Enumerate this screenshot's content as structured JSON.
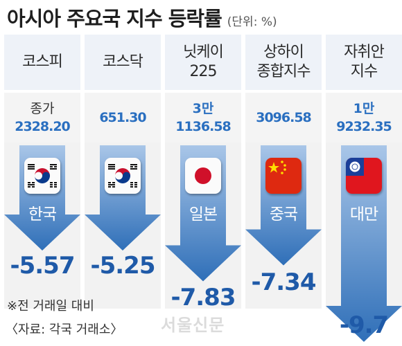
{
  "header": {
    "title": "아시아 주요국 지수 등락률",
    "unit": "(단위: %)"
  },
  "chart_data": {
    "type": "bar",
    "title": "아시아 주요국 지수 등락률",
    "unit": "(단위: %)",
    "categories": [
      "코스피",
      "코스닥",
      "닛케이 225",
      "상하이 종합지수",
      "자취안 지수"
    ],
    "values": [
      -5.57,
      -5.25,
      -7.83,
      -7.34,
      -9.7
    ],
    "ylim": [
      -9.7,
      0
    ],
    "columns": [
      {
        "header_lines": [
          "코스피"
        ],
        "close_label": "종가",
        "close_value": "2328.20",
        "country": "한국",
        "flag_icon": "south-korea-flag-icon",
        "change_label": "-5.57",
        "change": -5.57
      },
      {
        "header_lines": [
          "코스닥"
        ],
        "close_label": "",
        "close_value": "651.30",
        "country": "",
        "flag_icon": "south-korea-flag-icon",
        "change_label": "-5.25",
        "change": -5.25
      },
      {
        "header_lines": [
          "닛케이",
          "225"
        ],
        "close_label": "3만",
        "close_value": "1136.58",
        "country": "일본",
        "flag_icon": "japan-flag-icon",
        "change_label": "-7.83",
        "change": -7.83
      },
      {
        "header_lines": [
          "상하이",
          "종합지수"
        ],
        "close_label": "",
        "close_value": "3096.58",
        "country": "중국",
        "flag_icon": "china-flag-icon",
        "change_label": "-7.34",
        "change": -7.34
      },
      {
        "header_lines": [
          "자취안",
          "지수"
        ],
        "close_label": "1만",
        "close_value": "9232.35",
        "country": "대만",
        "flag_icon": "taiwan-flag-icon",
        "change_label": "-9.7",
        "change": -9.7
      }
    ]
  },
  "footnote": "※전 거래일 대비",
  "source": "〈자료: 각국 거래소〉",
  "watermark": "서울신문",
  "colors": {
    "arrow_top": "#a9c6e8",
    "arrow_bottom": "#2f6fb8",
    "value_text": "#1f5aa8",
    "header_bg": "#eef2f8"
  }
}
